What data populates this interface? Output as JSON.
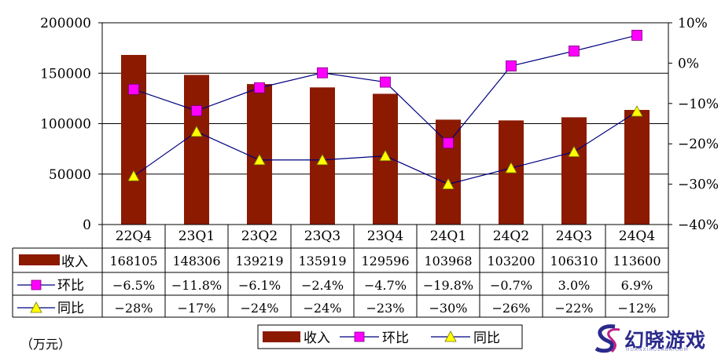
{
  "chart_data": {
    "type": "bar+line",
    "categories": [
      "22Q4",
      "23Q1",
      "23Q2",
      "23Q3",
      "23Q4",
      "24Q1",
      "24Q2",
      "24Q3",
      "24Q4"
    ],
    "series": [
      {
        "name": "收入",
        "kind": "bar",
        "axis": "left",
        "color": "#8B1A00",
        "values": [
          168105,
          148306,
          139219,
          135919,
          129596,
          103968,
          103200,
          106310,
          113600
        ],
        "labels": [
          "168105",
          "148306",
          "139219",
          "135919",
          "129596",
          "103968",
          "103200",
          "106310",
          "113600"
        ]
      },
      {
        "name": "环比",
        "kind": "line",
        "axis": "right",
        "marker": "square",
        "color": "#FF00FF",
        "line_color": "#000080",
        "values": [
          -6.5,
          -11.8,
          -6.1,
          -2.4,
          -4.7,
          -19.8,
          -0.7,
          3.0,
          6.9
        ],
        "labels": [
          "-6.5%",
          "-11.8%",
          "-6.1%",
          "-2.4%",
          "-4.7%",
          "-19.8%",
          "-0.7%",
          "3.0%",
          "6.9%"
        ]
      },
      {
        "name": "同比",
        "kind": "line",
        "axis": "right",
        "marker": "triangle",
        "color": "#FFFF00",
        "line_color": "#000080",
        "values": [
          -28,
          -17,
          -24,
          -24,
          -23,
          -30,
          -26,
          -22,
          -12
        ],
        "labels": [
          "-28%",
          "-17%",
          "-24%",
          "-24%",
          "-23%",
          "-30%",
          "-26%",
          "-22%",
          "-12%"
        ]
      }
    ],
    "y_left": {
      "min": 0,
      "max": 200000,
      "ticks": [
        "0",
        "50000",
        "100000",
        "150000",
        "200000"
      ]
    },
    "y_right": {
      "min": -40,
      "max": 10,
      "ticks": [
        "-40%",
        "-30%",
        "-20%",
        "-10%",
        "0%",
        "10%"
      ]
    },
    "legend_labels": [
      "收入",
      "环比",
      "同比"
    ],
    "unit_label": "（万元）",
    "grid": true,
    "legend": "bottom-center",
    "data_table": true
  },
  "watermark": {
    "text": "幻晓游戏",
    "sub": "HUANXIAOLABA.COM"
  }
}
